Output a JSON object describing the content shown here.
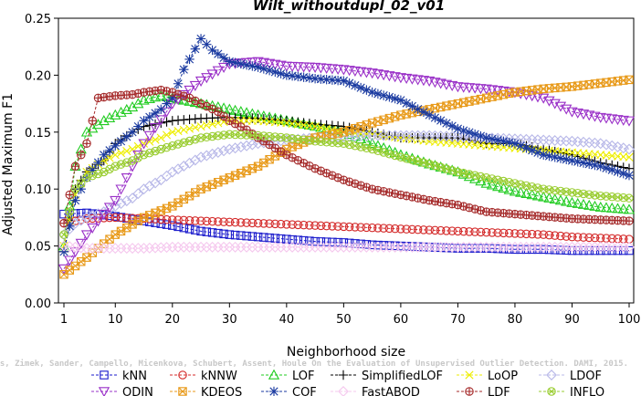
{
  "chart_data": {
    "type": "line",
    "title": "Wilt_withoutdupl_02_v01",
    "xlabel": "Neighborhood size",
    "ylabel": "Adjusted Maximum F1",
    "xlim": [
      1,
      100
    ],
    "ylim": [
      0,
      0.25
    ],
    "xticks": [
      1,
      10,
      20,
      30,
      40,
      50,
      60,
      70,
      80,
      90,
      100
    ],
    "xtick_labels": [
      "1",
      "10",
      "20",
      "30",
      "40",
      "50",
      "60",
      "70",
      "80",
      "90",
      "100"
    ],
    "yticks": [
      0,
      0.05,
      0.1,
      0.15,
      0.2,
      0.25
    ],
    "ytick_labels": [
      "0.00",
      "0.05",
      "0.10",
      "0.15",
      "0.20",
      "0.25"
    ],
    "grid": false,
    "legend_position": "bottom",
    "credit": "Campos, Zimek, Sander, Campello, Micenkova, Schubert, Assent, Houle On the Evaluation of Unsupervised Outlier Detection. DAMI, 2015.",
    "series": [
      {
        "name": "kNN",
        "color": "#1a1acc",
        "marker": "square",
        "x": [
          1,
          5,
          10,
          15,
          20,
          25,
          30,
          35,
          40,
          45,
          50,
          55,
          60,
          65,
          70,
          75,
          80,
          85,
          90,
          95,
          100
        ],
        "values": [
          0.078,
          0.079,
          0.076,
          0.072,
          0.068,
          0.063,
          0.06,
          0.058,
          0.056,
          0.054,
          0.053,
          0.051,
          0.05,
          0.049,
          0.048,
          0.048,
          0.047,
          0.047,
          0.046,
          0.046,
          0.046
        ]
      },
      {
        "name": "kNNW",
        "color": "#d42a2a",
        "marker": "circle",
        "x": [
          1,
          5,
          10,
          15,
          20,
          25,
          30,
          35,
          40,
          45,
          50,
          55,
          60,
          65,
          70,
          75,
          80,
          85,
          90,
          95,
          100
        ],
        "values": [
          0.07,
          0.074,
          0.075,
          0.074,
          0.073,
          0.072,
          0.071,
          0.07,
          0.069,
          0.068,
          0.067,
          0.066,
          0.065,
          0.064,
          0.063,
          0.062,
          0.061,
          0.06,
          0.058,
          0.057,
          0.056
        ]
      },
      {
        "name": "LOF",
        "color": "#22cc22",
        "marker": "triangle",
        "x": [
          1,
          3,
          5,
          8,
          10,
          13,
          15,
          18,
          20,
          25,
          30,
          35,
          40,
          45,
          50,
          55,
          60,
          65,
          70,
          75,
          80,
          85,
          90,
          95,
          100
        ],
        "values": [
          0.05,
          0.12,
          0.15,
          0.16,
          0.165,
          0.172,
          0.178,
          0.182,
          0.18,
          0.175,
          0.17,
          0.165,
          0.16,
          0.155,
          0.15,
          0.14,
          0.13,
          0.122,
          0.115,
          0.105,
          0.098,
          0.093,
          0.088,
          0.084,
          0.082
        ]
      },
      {
        "name": "SimplifiedLOF",
        "color": "#000000",
        "marker": "plus",
        "x": [
          1,
          3,
          5,
          8,
          10,
          13,
          15,
          18,
          20,
          25,
          30,
          35,
          40,
          45,
          50,
          55,
          60,
          65,
          70,
          75,
          80,
          85,
          90,
          95,
          100
        ],
        "values": [
          0.045,
          0.1,
          0.115,
          0.125,
          0.14,
          0.15,
          0.155,
          0.158,
          0.16,
          0.162,
          0.163,
          0.162,
          0.16,
          0.157,
          0.155,
          0.15,
          0.145,
          0.145,
          0.145,
          0.14,
          0.14,
          0.135,
          0.13,
          0.123,
          0.118
        ]
      },
      {
        "name": "LoOP",
        "color": "#eeee00",
        "marker": "x",
        "x": [
          1,
          3,
          5,
          8,
          10,
          13,
          15,
          18,
          20,
          25,
          30,
          35,
          40,
          45,
          50,
          55,
          60,
          65,
          70,
          75,
          80,
          85,
          90,
          95,
          100
        ],
        "values": [
          0.05,
          0.095,
          0.115,
          0.125,
          0.13,
          0.135,
          0.14,
          0.145,
          0.15,
          0.155,
          0.16,
          0.16,
          0.158,
          0.155,
          0.15,
          0.148,
          0.145,
          0.142,
          0.14,
          0.138,
          0.136,
          0.134,
          0.132,
          0.13,
          0.128
        ]
      },
      {
        "name": "LDOF",
        "color": "#b8b8e8",
        "marker": "diamond",
        "x": [
          1,
          3,
          5,
          8,
          10,
          13,
          15,
          18,
          20,
          25,
          30,
          35,
          40,
          45,
          50,
          55,
          60,
          65,
          70,
          75,
          80,
          85,
          90,
          95,
          100
        ],
        "values": [
          0.06,
          0.07,
          0.075,
          0.08,
          0.085,
          0.092,
          0.1,
          0.108,
          0.115,
          0.128,
          0.135,
          0.14,
          0.143,
          0.145,
          0.146,
          0.147,
          0.147,
          0.147,
          0.146,
          0.145,
          0.144,
          0.143,
          0.142,
          0.14,
          0.135
        ]
      },
      {
        "name": "ODIN",
        "color": "#9a30c8",
        "marker": "triangle-down",
        "x": [
          1,
          5,
          10,
          15,
          20,
          25,
          30,
          35,
          40,
          45,
          50,
          55,
          60,
          65,
          70,
          75,
          80,
          85,
          90,
          95,
          100
        ],
        "values": [
          0.03,
          0.06,
          0.09,
          0.14,
          0.175,
          0.195,
          0.21,
          0.212,
          0.208,
          0.207,
          0.205,
          0.202,
          0.198,
          0.195,
          0.19,
          0.188,
          0.185,
          0.18,
          0.168,
          0.163,
          0.16
        ]
      },
      {
        "name": "KDEOS",
        "color": "#e89a1a",
        "marker": "square-x",
        "x": [
          1,
          5,
          10,
          15,
          20,
          25,
          30,
          35,
          40,
          45,
          50,
          55,
          60,
          65,
          70,
          75,
          80,
          85,
          90,
          95,
          100
        ],
        "values": [
          0.025,
          0.04,
          0.06,
          0.075,
          0.085,
          0.1,
          0.11,
          0.12,
          0.135,
          0.145,
          0.15,
          0.158,
          0.165,
          0.17,
          0.175,
          0.18,
          0.185,
          0.188,
          0.19,
          0.193,
          0.196
        ]
      },
      {
        "name": "COF",
        "color": "#1a3aa0",
        "marker": "asterisk",
        "x": [
          1,
          3,
          5,
          8,
          10,
          13,
          15,
          18,
          20,
          22,
          25,
          27,
          30,
          35,
          40,
          45,
          50,
          55,
          60,
          65,
          70,
          75,
          80,
          85,
          90,
          95,
          100
        ],
        "values": [
          0.045,
          0.09,
          0.11,
          0.13,
          0.138,
          0.15,
          0.16,
          0.17,
          0.18,
          0.205,
          0.232,
          0.222,
          0.212,
          0.207,
          0.2,
          0.197,
          0.195,
          0.185,
          0.178,
          0.165,
          0.153,
          0.145,
          0.14,
          0.13,
          0.125,
          0.12,
          0.112
        ]
      },
      {
        "name": "FastABOD",
        "color": "#f5c8ee",
        "marker": "diamond",
        "x": [
          1,
          5,
          10,
          15,
          20,
          25,
          30,
          35,
          40,
          45,
          50,
          55,
          60,
          65,
          70,
          75,
          80,
          85,
          90,
          95,
          100
        ],
        "values": [
          0.05,
          0.048,
          0.048,
          0.048,
          0.049,
          0.049,
          0.049,
          0.049,
          0.049,
          0.049,
          0.049,
          0.049,
          0.049,
          0.049,
          0.049,
          0.049,
          0.049,
          0.049,
          0.049,
          0.049,
          0.049
        ]
      },
      {
        "name": "LDF",
        "color": "#a52a2a",
        "marker": "circle-plus",
        "x": [
          1,
          3,
          5,
          7,
          10,
          13,
          15,
          18,
          20,
          23,
          25,
          28,
          30,
          33,
          35,
          40,
          45,
          50,
          55,
          60,
          65,
          70,
          75,
          80,
          85,
          90,
          95,
          100
        ],
        "values": [
          0.07,
          0.12,
          0.14,
          0.18,
          0.182,
          0.183,
          0.185,
          0.187,
          0.185,
          0.18,
          0.175,
          0.168,
          0.16,
          0.152,
          0.145,
          0.13,
          0.118,
          0.108,
          0.1,
          0.095,
          0.09,
          0.086,
          0.08,
          0.078,
          0.076,
          0.074,
          0.073,
          0.072
        ]
      },
      {
        "name": "INFLO",
        "color": "#9acd32",
        "marker": "circle-x",
        "x": [
          1,
          3,
          5,
          8,
          10,
          13,
          15,
          18,
          20,
          25,
          30,
          35,
          40,
          45,
          50,
          55,
          60,
          65,
          70,
          75,
          80,
          85,
          90,
          95,
          100
        ],
        "values": [
          0.06,
          0.1,
          0.11,
          0.115,
          0.12,
          0.125,
          0.13,
          0.135,
          0.138,
          0.145,
          0.148,
          0.147,
          0.145,
          0.142,
          0.14,
          0.135,
          0.128,
          0.122,
          0.115,
          0.11,
          0.105,
          0.1,
          0.097,
          0.094,
          0.092
        ]
      }
    ]
  }
}
